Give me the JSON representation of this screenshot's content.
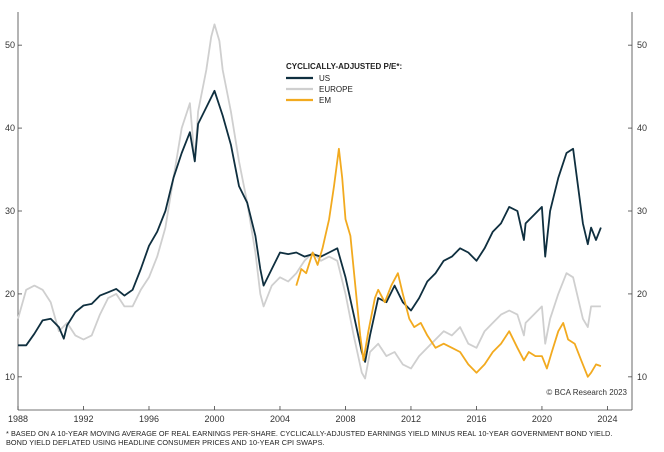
{
  "chart_data": {
    "type": "line",
    "title": "",
    "xlabel": "",
    "ylabel": "",
    "xlim": [
      1988,
      2025.5
    ],
    "ylim": [
      6,
      54
    ],
    "x_ticks": [
      "1988",
      "1992",
      "1996",
      "2000",
      "2004",
      "2008",
      "2012",
      "2016",
      "2020",
      "2024"
    ],
    "y_ticks": [
      "10",
      "20",
      "30",
      "40",
      "50"
    ],
    "grid": false,
    "legend": {
      "title": "CYCLICALLY-ADJUSTED P/E*:",
      "position": "top-center",
      "entries": [
        "US",
        "EUROPE",
        "EM"
      ]
    },
    "series": [
      {
        "name": "US",
        "color": "#0f2f3f",
        "points": [
          [
            1988.0,
            13.8
          ],
          [
            1988.5,
            13.8
          ],
          [
            1989.0,
            15.2
          ],
          [
            1989.5,
            16.8
          ],
          [
            1990.0,
            17.0
          ],
          [
            1990.5,
            16.0
          ],
          [
            1990.8,
            14.6
          ],
          [
            1991.0,
            16.2
          ],
          [
            1991.5,
            17.8
          ],
          [
            1992.0,
            18.6
          ],
          [
            1992.5,
            18.8
          ],
          [
            1993.0,
            19.8
          ],
          [
            1993.5,
            20.2
          ],
          [
            1994.0,
            20.6
          ],
          [
            1994.5,
            19.8
          ],
          [
            1995.0,
            20.5
          ],
          [
            1995.5,
            23.0
          ],
          [
            1996.0,
            25.8
          ],
          [
            1996.5,
            27.5
          ],
          [
            1997.0,
            30.0
          ],
          [
            1997.5,
            34.0
          ],
          [
            1998.0,
            37.0
          ],
          [
            1998.5,
            39.5
          ],
          [
            1998.8,
            36.0
          ],
          [
            1999.0,
            40.5
          ],
          [
            1999.5,
            42.5
          ],
          [
            2000.0,
            44.5
          ],
          [
            2000.5,
            41.5
          ],
          [
            2001.0,
            38.0
          ],
          [
            2001.5,
            33.0
          ],
          [
            2002.0,
            31.0
          ],
          [
            2002.5,
            27.0
          ],
          [
            2002.8,
            23.0
          ],
          [
            2003.0,
            21.0
          ],
          [
            2003.5,
            23.0
          ],
          [
            2004.0,
            25.0
          ],
          [
            2004.5,
            24.8
          ],
          [
            2005.0,
            25.0
          ],
          [
            2005.5,
            24.5
          ],
          [
            2006.0,
            24.8
          ],
          [
            2006.5,
            24.5
          ],
          [
            2007.0,
            25.0
          ],
          [
            2007.5,
            25.5
          ],
          [
            2008.0,
            22.0
          ],
          [
            2008.5,
            17.5
          ],
          [
            2009.0,
            13.0
          ],
          [
            2009.2,
            11.8
          ],
          [
            2009.5,
            15.0
          ],
          [
            2010.0,
            19.5
          ],
          [
            2010.5,
            19.0
          ],
          [
            2011.0,
            21.0
          ],
          [
            2011.5,
            19.0
          ],
          [
            2012.0,
            18.0
          ],
          [
            2012.5,
            19.5
          ],
          [
            2013.0,
            21.5
          ],
          [
            2013.5,
            22.5
          ],
          [
            2014.0,
            24.0
          ],
          [
            2014.5,
            24.5
          ],
          [
            2015.0,
            25.5
          ],
          [
            2015.5,
            25.0
          ],
          [
            2016.0,
            24.0
          ],
          [
            2016.5,
            25.5
          ],
          [
            2017.0,
            27.5
          ],
          [
            2017.5,
            28.5
          ],
          [
            2018.0,
            30.5
          ],
          [
            2018.5,
            30.0
          ],
          [
            2018.9,
            26.5
          ],
          [
            2019.0,
            28.5
          ],
          [
            2019.5,
            29.5
          ],
          [
            2020.0,
            30.5
          ],
          [
            2020.2,
            24.5
          ],
          [
            2020.5,
            30.0
          ],
          [
            2021.0,
            34.0
          ],
          [
            2021.5,
            37.0
          ],
          [
            2021.9,
            37.5
          ],
          [
            2022.2,
            33.0
          ],
          [
            2022.5,
            28.5
          ],
          [
            2022.8,
            26.0
          ],
          [
            2023.0,
            28.0
          ],
          [
            2023.3,
            26.5
          ],
          [
            2023.6,
            28.0
          ]
        ]
      },
      {
        "name": "EUROPE",
        "color": "#cfcfcf",
        "points": [
          [
            1988.0,
            17.0
          ],
          [
            1988.5,
            20.5
          ],
          [
            1989.0,
            21.0
          ],
          [
            1989.5,
            20.5
          ],
          [
            1990.0,
            19.0
          ],
          [
            1990.5,
            15.5
          ],
          [
            1991.0,
            16.5
          ],
          [
            1991.5,
            15.0
          ],
          [
            1992.0,
            14.5
          ],
          [
            1992.5,
            15.0
          ],
          [
            1993.0,
            17.5
          ],
          [
            1993.5,
            19.5
          ],
          [
            1994.0,
            20.0
          ],
          [
            1994.5,
            18.5
          ],
          [
            1995.0,
            18.5
          ],
          [
            1995.5,
            20.5
          ],
          [
            1996.0,
            22.0
          ],
          [
            1996.5,
            24.5
          ],
          [
            1997.0,
            28.0
          ],
          [
            1997.5,
            34.0
          ],
          [
            1998.0,
            40.0
          ],
          [
            1998.5,
            43.0
          ],
          [
            1998.8,
            36.0
          ],
          [
            1999.0,
            42.0
          ],
          [
            1999.5,
            47.0
          ],
          [
            1999.8,
            51.0
          ],
          [
            2000.0,
            52.5
          ],
          [
            2000.3,
            50.5
          ],
          [
            2000.5,
            47.0
          ],
          [
            2001.0,
            42.0
          ],
          [
            2001.5,
            36.0
          ],
          [
            2002.0,
            31.0
          ],
          [
            2002.5,
            25.0
          ],
          [
            2002.8,
            20.0
          ],
          [
            2003.0,
            18.5
          ],
          [
            2003.5,
            21.0
          ],
          [
            2004.0,
            22.0
          ],
          [
            2004.5,
            21.5
          ],
          [
            2005.0,
            22.5
          ],
          [
            2005.5,
            24.0
          ],
          [
            2006.0,
            25.0
          ],
          [
            2006.5,
            24.0
          ],
          [
            2007.0,
            24.5
          ],
          [
            2007.5,
            24.0
          ],
          [
            2008.0,
            20.0
          ],
          [
            2008.5,
            15.0
          ],
          [
            2009.0,
            10.5
          ],
          [
            2009.2,
            9.8
          ],
          [
            2009.5,
            13.0
          ],
          [
            2010.0,
            14.0
          ],
          [
            2010.5,
            12.5
          ],
          [
            2011.0,
            13.0
          ],
          [
            2011.5,
            11.5
          ],
          [
            2012.0,
            11.0
          ],
          [
            2012.5,
            12.5
          ],
          [
            2013.0,
            13.5
          ],
          [
            2013.5,
            14.5
          ],
          [
            2014.0,
            15.5
          ],
          [
            2014.5,
            15.0
          ],
          [
            2015.0,
            16.0
          ],
          [
            2015.5,
            14.0
          ],
          [
            2016.0,
            13.5
          ],
          [
            2016.5,
            15.5
          ],
          [
            2017.0,
            16.5
          ],
          [
            2017.5,
            17.5
          ],
          [
            2018.0,
            18.0
          ],
          [
            2018.5,
            17.5
          ],
          [
            2018.9,
            15.0
          ],
          [
            2019.0,
            16.5
          ],
          [
            2019.5,
            17.5
          ],
          [
            2020.0,
            18.5
          ],
          [
            2020.2,
            14.0
          ],
          [
            2020.5,
            17.0
          ],
          [
            2021.0,
            20.0
          ],
          [
            2021.5,
            22.5
          ],
          [
            2021.9,
            22.0
          ],
          [
            2022.2,
            19.5
          ],
          [
            2022.5,
            17.0
          ],
          [
            2022.8,
            16.0
          ],
          [
            2023.0,
            18.5
          ],
          [
            2023.3,
            18.5
          ],
          [
            2023.6,
            18.5
          ]
        ]
      },
      {
        "name": "EM",
        "color": "#f2aa1f",
        "points": [
          [
            2005.0,
            21.0
          ],
          [
            2005.3,
            23.0
          ],
          [
            2005.6,
            22.5
          ],
          [
            2006.0,
            25.0
          ],
          [
            2006.3,
            23.5
          ],
          [
            2006.6,
            25.5
          ],
          [
            2007.0,
            29.0
          ],
          [
            2007.3,
            33.0
          ],
          [
            2007.6,
            37.5
          ],
          [
            2007.8,
            34.0
          ],
          [
            2008.0,
            29.0
          ],
          [
            2008.3,
            27.0
          ],
          [
            2008.6,
            21.0
          ],
          [
            2008.9,
            15.0
          ],
          [
            2009.1,
            12.0
          ],
          [
            2009.4,
            15.5
          ],
          [
            2009.8,
            19.5
          ],
          [
            2010.0,
            20.5
          ],
          [
            2010.4,
            19.0
          ],
          [
            2010.8,
            21.0
          ],
          [
            2011.2,
            22.5
          ],
          [
            2011.5,
            20.0
          ],
          [
            2011.9,
            17.0
          ],
          [
            2012.2,
            16.0
          ],
          [
            2012.6,
            16.5
          ],
          [
            2013.0,
            15.0
          ],
          [
            2013.5,
            13.5
          ],
          [
            2014.0,
            14.0
          ],
          [
            2014.5,
            13.5
          ],
          [
            2015.0,
            13.0
          ],
          [
            2015.5,
            11.5
          ],
          [
            2016.0,
            10.5
          ],
          [
            2016.5,
            11.5
          ],
          [
            2017.0,
            13.0
          ],
          [
            2017.5,
            14.0
          ],
          [
            2018.0,
            15.5
          ],
          [
            2018.5,
            13.5
          ],
          [
            2018.9,
            12.0
          ],
          [
            2019.2,
            13.0
          ],
          [
            2019.6,
            12.5
          ],
          [
            2020.0,
            12.5
          ],
          [
            2020.3,
            11.0
          ],
          [
            2020.6,
            13.0
          ],
          [
            2021.0,
            15.5
          ],
          [
            2021.3,
            16.5
          ],
          [
            2021.6,
            14.5
          ],
          [
            2022.0,
            14.0
          ],
          [
            2022.4,
            12.0
          ],
          [
            2022.8,
            10.0
          ],
          [
            2023.0,
            10.5
          ],
          [
            2023.3,
            11.5
          ],
          [
            2023.6,
            11.3
          ]
        ]
      }
    ]
  },
  "source": "© BCA Research 2023",
  "footnote": {
    "line1": "*  BASED ON A 10-YEAR MOVING AVERAGE OF REAL EARNINGS PER-SHARE. CYCLICALLY-ADJUSTED EARNINGS YIELD MINUS REAL 10-YEAR GOVERNMENT BOND YIELD.",
    "line2": "BOND YIELD DEFLATED USING HEADLINE CONSUMER PRICES AND 10-YEAR CPI SWAPS."
  }
}
